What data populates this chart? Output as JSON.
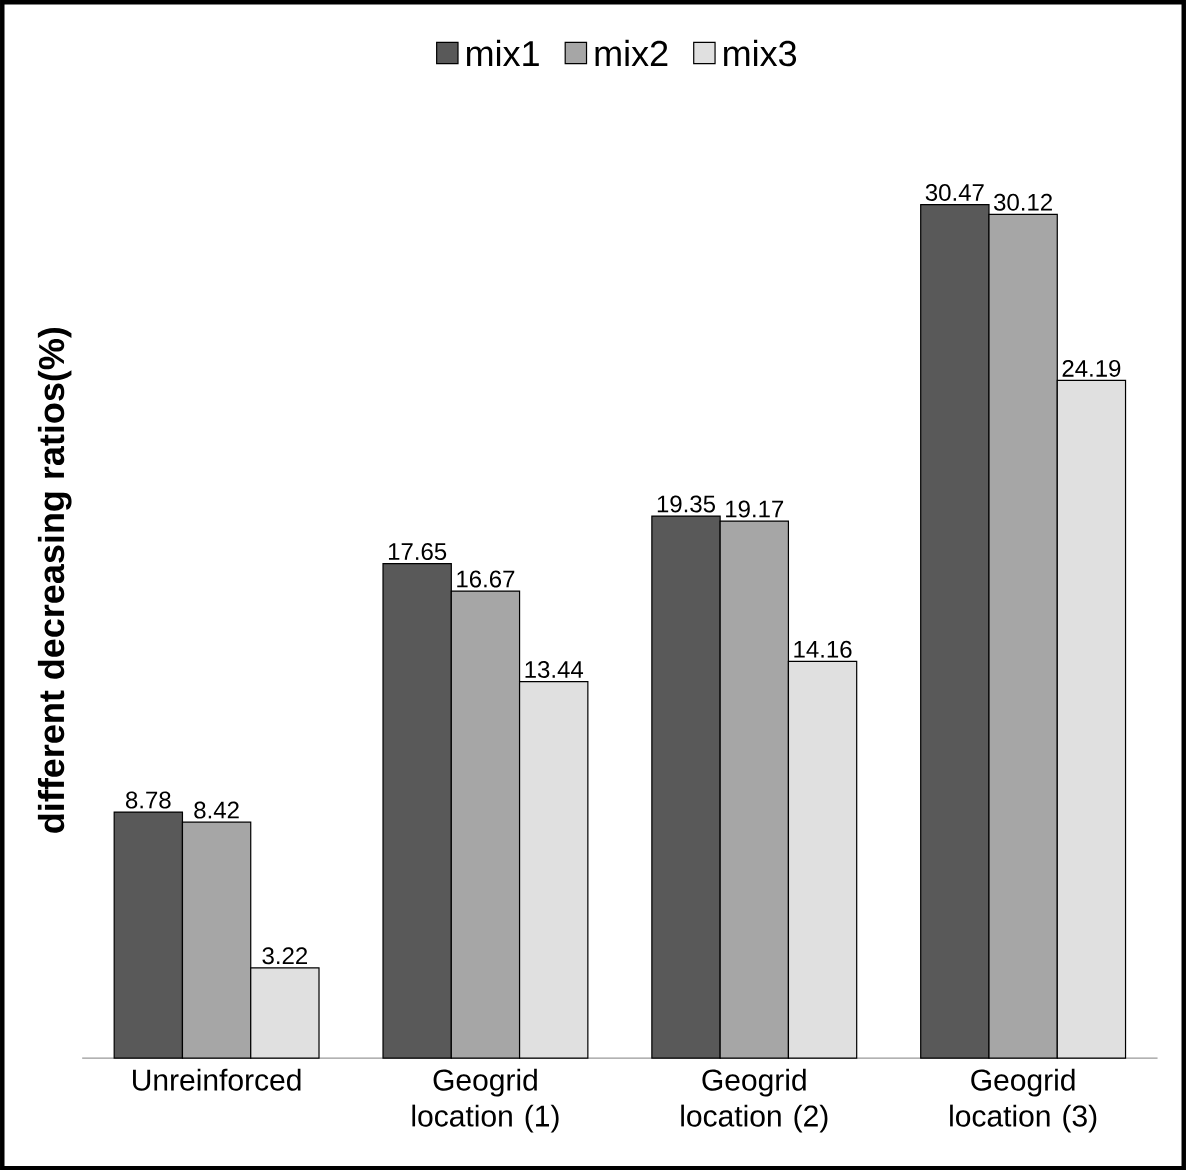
{
  "chart_data": {
    "type": "bar",
    "ylabel": "different decreasing ratios(%)",
    "categories": [
      "Unreinforced",
      "Geogrid location (1)",
      "Geogrid location (2)",
      "Geogrid location (3)"
    ],
    "series": [
      {
        "name": "mix1",
        "color": "#595959",
        "values": [
          8.78,
          17.65,
          19.35,
          30.47
        ]
      },
      {
        "name": "mix2",
        "color": "#a6a6a6",
        "values": [
          8.42,
          16.67,
          19.17,
          30.12
        ]
      },
      {
        "name": "mix3",
        "color": "#e0e0e0",
        "values": [
          3.22,
          13.44,
          14.16,
          24.19
        ]
      }
    ],
    "data_labels": true,
    "legend": "top"
  }
}
